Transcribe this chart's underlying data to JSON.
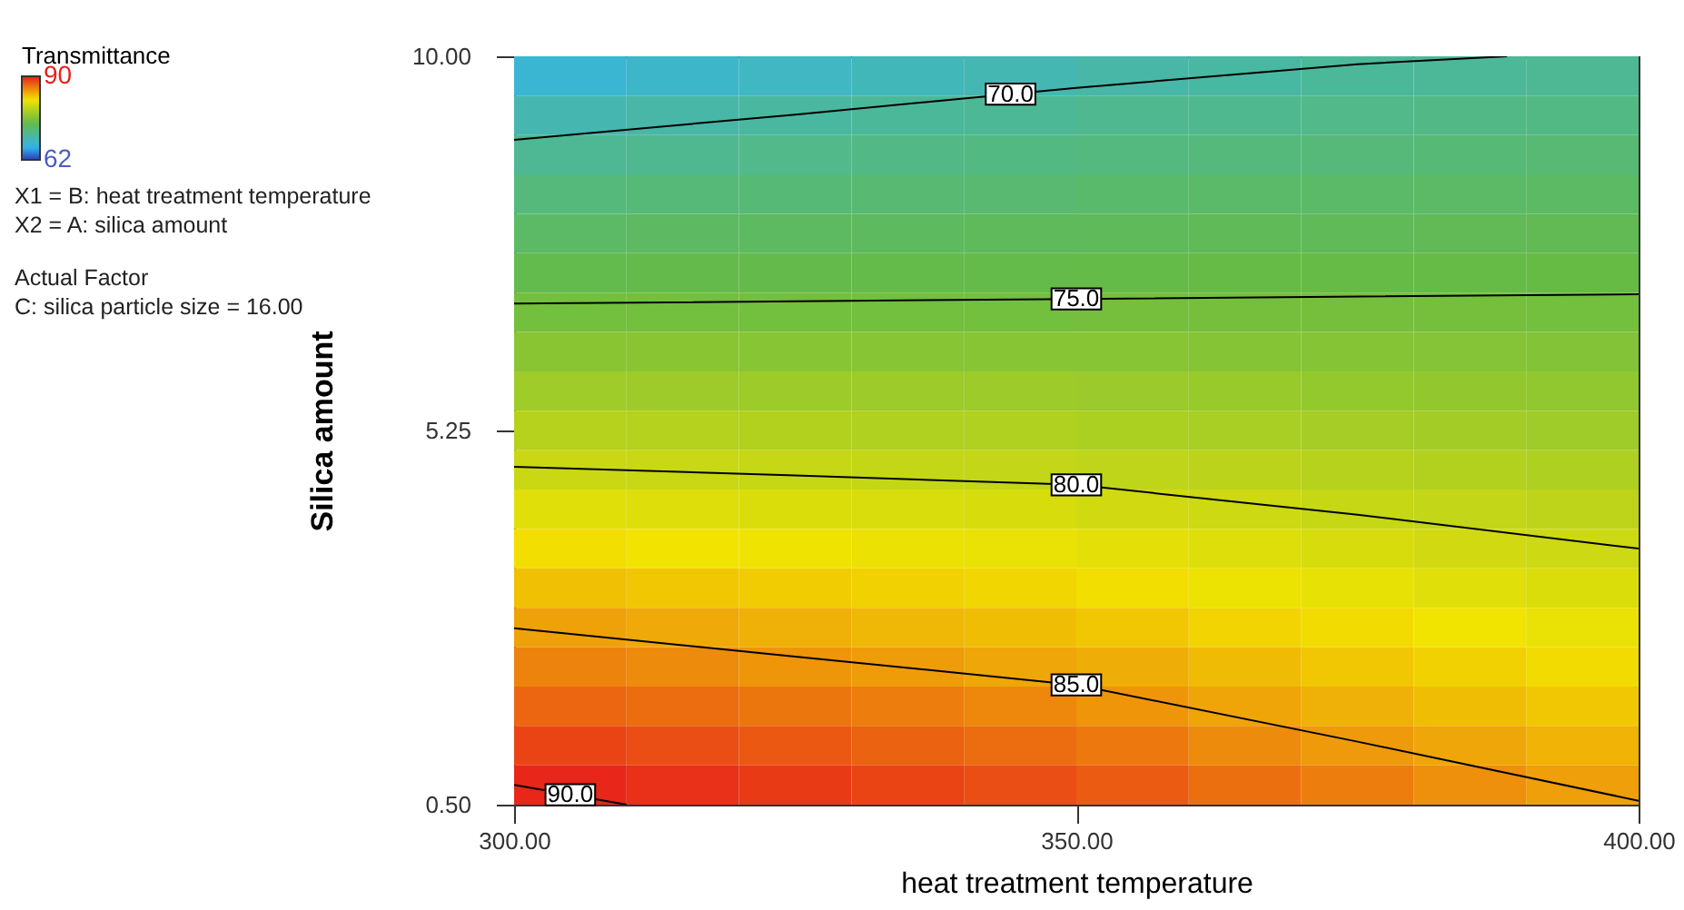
{
  "chart_data": {
    "type": "heatmap",
    "xlabel": "heat treatment temperature",
    "ylabel": "Silica amount",
    "legend_title": "Transmittance",
    "x": [
      305,
      315,
      325,
      335,
      345,
      355,
      365,
      375,
      385,
      395
    ],
    "y": [
      9.75,
      9.25,
      8.75,
      8.25,
      7.75,
      7.25,
      6.75,
      6.25,
      5.75,
      5.25,
      4.75,
      4.25,
      3.75,
      3.25,
      2.75,
      2.25,
      1.75,
      1.25,
      0.75
    ],
    "cells": [
      [
        67.5,
        67.9,
        68.3,
        68.7,
        69.1,
        69.6,
        69.9,
        70.3,
        70.4,
        70.6
      ],
      [
        69.2,
        69.6,
        70.0,
        70.3,
        70.5,
        70.8,
        70.9,
        71.1,
        71.3,
        71.4
      ],
      [
        70.6,
        70.8,
        71.1,
        71.3,
        71.5,
        71.7,
        71.8,
        71.9,
        72.1,
        72.2
      ],
      [
        71.8,
        72.0,
        72.1,
        72.3,
        72.4,
        72.6,
        72.7,
        72.8,
        72.9,
        73.0
      ],
      [
        72.9,
        73.1,
        73.2,
        73.3,
        73.4,
        73.5,
        73.6,
        73.6,
        73.7,
        73.8
      ],
      [
        74.1,
        74.2,
        74.2,
        74.3,
        74.3,
        74.4,
        74.5,
        74.5,
        74.5,
        74.6
      ],
      [
        75.3,
        75.3,
        75.3,
        75.3,
        75.3,
        75.4,
        75.4,
        75.4,
        75.4,
        75.3
      ],
      [
        76.5,
        76.5,
        76.4,
        76.4,
        76.4,
        76.4,
        76.3,
        76.3,
        76.2,
        76.1
      ],
      [
        77.7,
        77.6,
        77.5,
        77.5,
        77.5,
        77.4,
        77.3,
        77.1,
        77.0,
        76.9
      ],
      [
        78.9,
        78.8,
        78.7,
        78.6,
        78.6,
        78.4,
        78.2,
        78.0,
        77.9,
        77.7
      ],
      [
        80.0,
        79.9,
        79.8,
        79.7,
        79.6,
        79.4,
        79.2,
        78.9,
        78.7,
        78.5
      ],
      [
        81.2,
        81.1,
        80.9,
        80.8,
        80.7,
        80.4,
        80.1,
        79.8,
        79.6,
        79.3
      ],
      [
        82.4,
        82.2,
        82.0,
        81.8,
        81.7,
        81.4,
        81.0,
        80.7,
        80.4,
        80.1
      ],
      [
        83.6,
        83.3,
        83.1,
        82.9,
        82.7,
        82.4,
        81.9,
        81.6,
        81.2,
        80.9
      ],
      [
        84.8,
        84.5,
        84.2,
        83.9,
        83.7,
        83.3,
        82.8,
        82.5,
        82.1,
        81.7
      ],
      [
        86.0,
        85.7,
        85.3,
        85.0,
        84.6,
        84.3,
        83.8,
        83.3,
        82.9,
        82.5
      ],
      [
        87.2,
        86.9,
        86.5,
        86.2,
        85.8,
        85.3,
        84.7,
        84.2,
        83.7,
        83.3
      ],
      [
        88.5,
        88.1,
        87.7,
        87.3,
        86.9,
        86.4,
        85.7,
        85.1,
        84.6,
        84.1
      ],
      [
        89.7,
        89.3,
        88.9,
        88.5,
        88.1,
        87.6,
        86.8,
        86.2,
        85.5,
        84.9
      ]
    ],
    "clim": [
      62,
      90
    ],
    "cticks": [
      62,
      90
    ],
    "xlim": [
      300,
      400
    ],
    "xticks": [
      {
        "value": 300,
        "label": "300.00"
      },
      {
        "value": 350,
        "label": "350.00"
      },
      {
        "value": 400,
        "label": "400.00"
      }
    ],
    "ylim": [
      0.5,
      10
    ],
    "yticks": [
      {
        "value": 0.5,
        "label": "0.50"
      },
      {
        "value": 5.25,
        "label": "5.25"
      },
      {
        "value": 10,
        "label": "10.00"
      }
    ],
    "series": [
      {
        "type": "line",
        "name": "70.0",
        "color": "#000000",
        "x": [
          300,
          325,
          350,
          375,
          388.3
        ],
        "values": [
          8.94,
          9.26,
          9.6,
          9.9,
          10.0
        ]
      },
      {
        "type": "line",
        "name": "75.0",
        "color": "#000000",
        "x": [
          300,
          350,
          400
        ],
        "values": [
          6.86,
          6.92,
          6.98
        ]
      },
      {
        "type": "line",
        "name": "80.0",
        "color": "#000000",
        "x": [
          300,
          325,
          350,
          375,
          400
        ],
        "values": [
          4.79,
          4.68,
          4.56,
          4.18,
          3.75
        ]
      },
      {
        "type": "line",
        "name": "85.0",
        "color": "#000000",
        "x": [
          300,
          325,
          350,
          375,
          400
        ],
        "values": [
          2.74,
          2.38,
          2.02,
          1.3,
          0.55
        ]
      },
      {
        "type": "line",
        "name": "90.0",
        "color": "#000000",
        "x": [
          300,
          310
        ],
        "values": [
          0.75,
          0.5
        ]
      }
    ],
    "annotations": [
      "X1 = B: heat treatment temperature",
      "X2 = A: silica amount",
      "Actual Factor",
      "C: silica particle size = 16.00"
    ]
  }
}
